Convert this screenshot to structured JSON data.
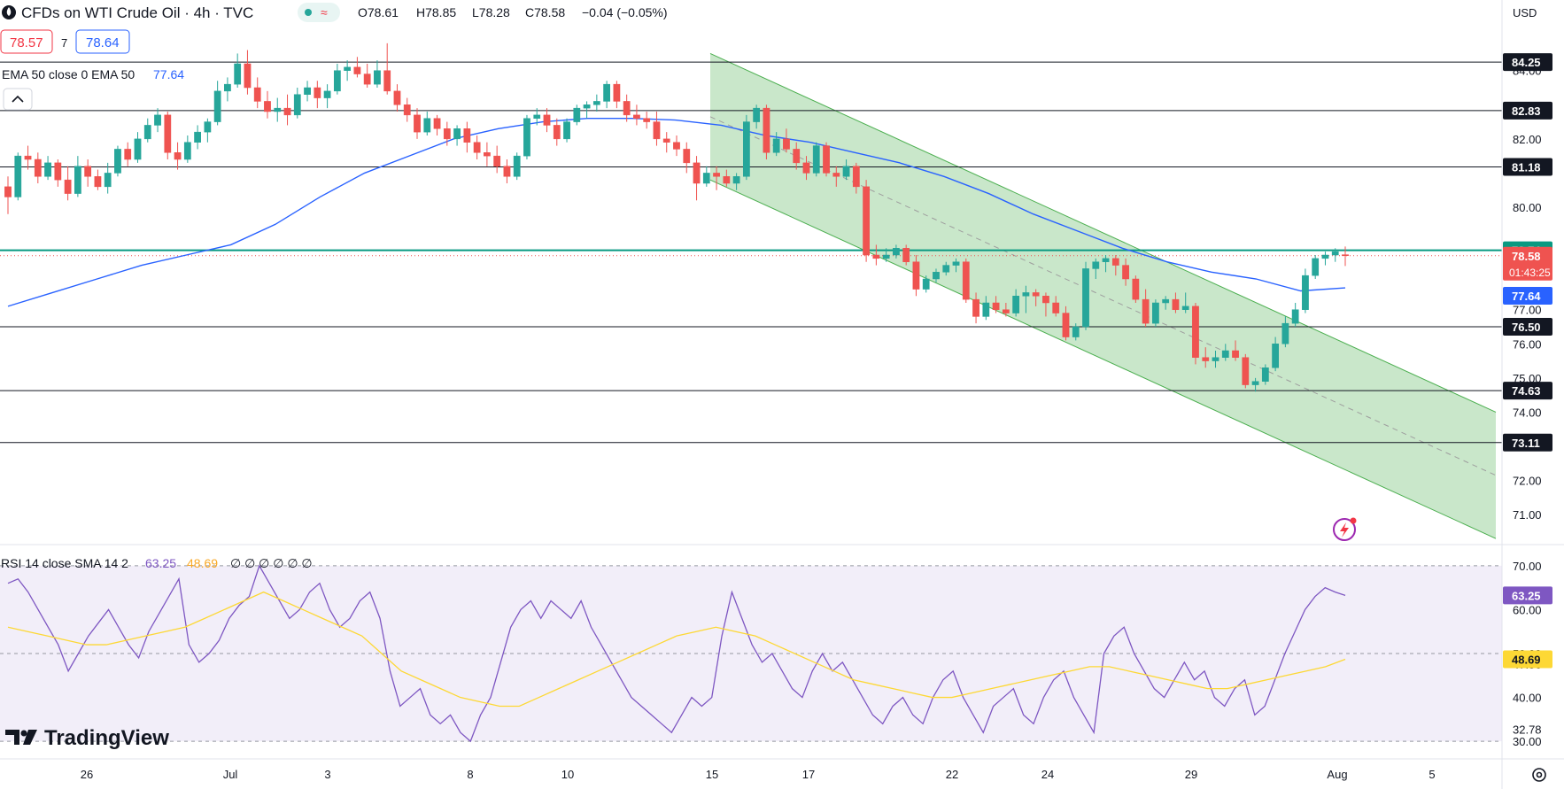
{
  "header": {
    "title": "CFDs on WTI Crude Oil · 4h · TVC",
    "o": "O78.61",
    "h": "H78.85",
    "l": "L78.28",
    "c": "C78.58",
    "change": "−0.04 (−0.05%)",
    "status_wave": "≈",
    "bid": "78.57",
    "spread": "7",
    "ask": "78.64",
    "currency": "USD"
  },
  "indicators": {
    "ema_label": "EMA 50 close 0 EMA 50",
    "ema_value": "77.64",
    "rsi_label": "RSI 14 close SMA 14 2",
    "rsi_value": "63.25",
    "rsi_sma_value": "48.69",
    "rsi_zeros": "∅ ∅ ∅ ∅ ∅ ∅"
  },
  "branding": {
    "logo_text": "TradingView"
  },
  "colors": {
    "up": "#26a69a",
    "down": "#ef5350",
    "ema": "#2962ff",
    "rsi": "#7e57c2",
    "rsi_sma": "#fdd835",
    "channel": "#4caf50",
    "price_line": "#089981"
  },
  "chart_data": [
    {
      "type": "candlestick",
      "title": "CFDs on WTI Crude Oil · 4h · TVC",
      "x_ticks": [
        "26",
        "Jul",
        "3",
        "8",
        "10",
        "15",
        "17",
        "22",
        "24",
        "29",
        "Aug",
        "5"
      ],
      "y_ticks": [
        71.0,
        72.0,
        74.0,
        75.0,
        76.0,
        77.0,
        78.0,
        80.0,
        82.0,
        84.0
      ],
      "ylim": [
        70.2,
        84.9
      ],
      "horizontal_levels": [
        84.25,
        82.83,
        81.18,
        76.5,
        74.63,
        73.11
      ],
      "highlight_level": 78.74,
      "last_price": 78.58,
      "countdown": "01:43:25",
      "ema_last": 77.64,
      "channel": {
        "upper": {
          "from": 84.5,
          "to": 74.0
        },
        "lower": {
          "from": 80.8,
          "to": 70.3
        }
      },
      "candles": [
        [
          80.6,
          80.9,
          79.8,
          80.3
        ],
        [
          80.3,
          81.6,
          80.2,
          81.5
        ],
        [
          81.5,
          81.8,
          81.1,
          81.4
        ],
        [
          81.4,
          81.6,
          80.7,
          80.9
        ],
        [
          80.9,
          81.5,
          80.8,
          81.3
        ],
        [
          81.3,
          81.4,
          80.6,
          80.8
        ],
        [
          80.8,
          81.2,
          80.2,
          80.4
        ],
        [
          80.4,
          81.5,
          80.3,
          81.2
        ],
        [
          81.2,
          81.4,
          80.6,
          80.9
        ],
        [
          80.9,
          81.1,
          80.5,
          80.6
        ],
        [
          80.6,
          81.3,
          80.4,
          81.0
        ],
        [
          81.0,
          81.8,
          80.9,
          81.7
        ],
        [
          81.7,
          81.9,
          81.2,
          81.4
        ],
        [
          81.4,
          82.2,
          81.3,
          82.0
        ],
        [
          82.0,
          82.6,
          81.9,
          82.4
        ],
        [
          82.4,
          82.9,
          82.2,
          82.7
        ],
        [
          82.7,
          82.8,
          81.4,
          81.6
        ],
        [
          81.6,
          81.9,
          81.1,
          81.4
        ],
        [
          81.4,
          82.1,
          81.3,
          81.9
        ],
        [
          81.9,
          82.4,
          81.7,
          82.2
        ],
        [
          82.2,
          82.6,
          81.9,
          82.5
        ],
        [
          82.5,
          83.7,
          82.4,
          83.4
        ],
        [
          83.4,
          83.8,
          83.1,
          83.6
        ],
        [
          83.6,
          84.5,
          83.5,
          84.2
        ],
        [
          84.2,
          84.6,
          83.3,
          83.5
        ],
        [
          83.5,
          83.8,
          82.9,
          83.1
        ],
        [
          83.1,
          83.4,
          82.6,
          82.8
        ],
        [
          82.8,
          83.2,
          82.5,
          82.9
        ],
        [
          82.9,
          83.3,
          82.4,
          82.7
        ],
        [
          82.7,
          83.5,
          82.6,
          83.3
        ],
        [
          83.3,
          83.7,
          83.1,
          83.5
        ],
        [
          83.5,
          83.7,
          82.9,
          83.2
        ],
        [
          83.2,
          83.6,
          82.9,
          83.4
        ],
        [
          83.4,
          84.2,
          83.3,
          84.0
        ],
        [
          84.0,
          84.3,
          83.7,
          84.1
        ],
        [
          84.1,
          84.4,
          83.8,
          83.9
        ],
        [
          83.9,
          84.2,
          83.5,
          83.6
        ],
        [
          83.6,
          84.3,
          83.5,
          84.0
        ],
        [
          84.0,
          84.8,
          83.3,
          83.4
        ],
        [
          83.4,
          83.6,
          82.8,
          83.0
        ],
        [
          83.0,
          83.2,
          82.5,
          82.7
        ],
        [
          82.7,
          82.9,
          82.0,
          82.2
        ],
        [
          82.2,
          82.8,
          82.1,
          82.6
        ],
        [
          82.6,
          82.7,
          82.1,
          82.3
        ],
        [
          82.3,
          82.5,
          81.8,
          82.0
        ],
        [
          82.0,
          82.4,
          81.8,
          82.3
        ],
        [
          82.3,
          82.5,
          81.6,
          81.9
        ],
        [
          81.9,
          82.1,
          81.4,
          81.6
        ],
        [
          81.6,
          81.9,
          81.2,
          81.5
        ],
        [
          81.5,
          81.8,
          81.0,
          81.2
        ],
        [
          81.2,
          81.4,
          80.7,
          80.9
        ],
        [
          80.9,
          81.6,
          80.8,
          81.5
        ],
        [
          81.5,
          82.7,
          81.4,
          82.6
        ],
        [
          82.6,
          82.9,
          82.4,
          82.7
        ],
        [
          82.7,
          82.9,
          82.2,
          82.4
        ],
        [
          82.4,
          82.6,
          81.8,
          82.0
        ],
        [
          82.0,
          82.6,
          81.9,
          82.5
        ],
        [
          82.5,
          83.0,
          82.4,
          82.9
        ],
        [
          82.9,
          83.1,
          82.6,
          83.0
        ],
        [
          83.0,
          83.3,
          82.8,
          83.1
        ],
        [
          83.1,
          83.7,
          82.9,
          83.6
        ],
        [
          83.6,
          83.7,
          82.9,
          83.1
        ],
        [
          83.1,
          83.3,
          82.5,
          82.7
        ],
        [
          82.7,
          83.0,
          82.4,
          82.6
        ],
        [
          82.6,
          82.8,
          82.3,
          82.5
        ],
        [
          82.5,
          82.8,
          81.8,
          82.0
        ],
        [
          82.0,
          82.2,
          81.6,
          81.9
        ],
        [
          81.9,
          82.1,
          81.5,
          81.7
        ],
        [
          81.7,
          81.9,
          81.0,
          81.3
        ],
        [
          81.3,
          81.5,
          80.2,
          80.7
        ],
        [
          80.7,
          81.2,
          80.6,
          81.0
        ],
        [
          81.0,
          81.2,
          80.5,
          80.9
        ],
        [
          80.9,
          81.1,
          80.6,
          80.7
        ],
        [
          80.7,
          81.0,
          80.5,
          80.9
        ],
        [
          80.9,
          82.7,
          80.8,
          82.5
        ],
        [
          82.5,
          83.0,
          82.3,
          82.9
        ],
        [
          82.9,
          83.0,
          81.4,
          81.6
        ],
        [
          81.6,
          82.2,
          81.5,
          82.0
        ],
        [
          82.0,
          82.3,
          81.6,
          81.7
        ],
        [
          81.7,
          81.9,
          81.1,
          81.3
        ],
        [
          81.3,
          81.5,
          80.8,
          81.0
        ],
        [
          81.0,
          81.9,
          80.9,
          81.8
        ],
        [
          81.8,
          81.9,
          80.9,
          81.0
        ],
        [
          81.0,
          81.2,
          80.6,
          80.9
        ],
        [
          80.9,
          81.4,
          80.8,
          81.2
        ],
        [
          81.2,
          81.3,
          80.4,
          80.6
        ],
        [
          80.6,
          80.8,
          78.4,
          78.6
        ],
        [
          78.6,
          78.9,
          78.3,
          78.5
        ],
        [
          78.5,
          78.8,
          78.4,
          78.6
        ],
        [
          78.6,
          78.9,
          78.5,
          78.8
        ],
        [
          78.8,
          78.9,
          78.3,
          78.4
        ],
        [
          78.4,
          78.6,
          77.4,
          77.6
        ],
        [
          77.6,
          78.0,
          77.5,
          77.9
        ],
        [
          77.9,
          78.2,
          77.8,
          78.1
        ],
        [
          78.1,
          78.4,
          78.0,
          78.3
        ],
        [
          78.3,
          78.5,
          78.1,
          78.4
        ],
        [
          78.4,
          78.5,
          77.2,
          77.3
        ],
        [
          77.3,
          77.5,
          76.6,
          76.8
        ],
        [
          76.8,
          77.4,
          76.7,
          77.2
        ],
        [
          77.2,
          77.4,
          76.9,
          77.0
        ],
        [
          77.0,
          77.2,
          76.8,
          76.9
        ],
        [
          76.9,
          77.6,
          76.8,
          77.4
        ],
        [
          77.4,
          77.7,
          76.9,
          77.5
        ],
        [
          77.5,
          77.6,
          77.1,
          77.4
        ],
        [
          77.4,
          77.5,
          76.8,
          77.2
        ],
        [
          77.2,
          77.4,
          76.8,
          76.9
        ],
        [
          76.9,
          77.1,
          76.1,
          76.2
        ],
        [
          76.2,
          76.6,
          76.1,
          76.5
        ],
        [
          76.5,
          78.4,
          76.4,
          78.2
        ],
        [
          78.2,
          78.5,
          77.9,
          78.4
        ],
        [
          78.4,
          78.6,
          78.1,
          78.5
        ],
        [
          78.5,
          78.6,
          78.0,
          78.3
        ],
        [
          78.3,
          78.5,
          77.7,
          77.9
        ],
        [
          77.9,
          78.0,
          77.2,
          77.3
        ],
        [
          77.3,
          77.6,
          76.5,
          76.6
        ],
        [
          76.6,
          77.3,
          76.5,
          77.2
        ],
        [
          77.2,
          77.4,
          77.0,
          77.3
        ],
        [
          77.3,
          77.5,
          76.9,
          77.0
        ],
        [
          77.0,
          77.5,
          76.9,
          77.1
        ],
        [
          77.1,
          77.2,
          75.4,
          75.6
        ],
        [
          75.6,
          75.9,
          75.3,
          75.5
        ],
        [
          75.5,
          75.8,
          75.3,
          75.6
        ],
        [
          75.6,
          76.0,
          75.5,
          75.8
        ],
        [
          75.8,
          76.1,
          75.5,
          75.6
        ],
        [
          75.6,
          75.7,
          74.7,
          74.8
        ],
        [
          74.8,
          75.0,
          74.6,
          74.9
        ],
        [
          74.9,
          75.4,
          74.8,
          75.3
        ],
        [
          75.3,
          76.2,
          75.2,
          76.0
        ],
        [
          76.0,
          76.8,
          75.9,
          76.6
        ],
        [
          76.6,
          77.2,
          76.5,
          77.0
        ],
        [
          77.0,
          78.2,
          76.9,
          78.0
        ],
        [
          78.0,
          78.6,
          77.9,
          78.5
        ],
        [
          78.5,
          78.7,
          78.3,
          78.6
        ],
        [
          78.6,
          78.8,
          78.4,
          78.7
        ],
        [
          78.61,
          78.85,
          78.28,
          78.58
        ]
      ],
      "ema": [
        77.1,
        77.5,
        77.9,
        78.3,
        78.6,
        78.9,
        79.5,
        80.3,
        81.0,
        81.5,
        82.0,
        82.3,
        82.5,
        82.6,
        82.6,
        82.55,
        82.4,
        82.1,
        81.9,
        81.6,
        81.3,
        80.9,
        80.4,
        79.8,
        79.3,
        78.8,
        78.4,
        78.1,
        77.9,
        77.55,
        77.64
      ],
      "ohlc_label": "O78.61 H78.85 L78.28 C78.58"
    },
    {
      "type": "line",
      "title": "RSI 14 close SMA 14 2",
      "y_ticks": [
        30.0,
        40.0,
        50.0,
        60.0,
        70.0
      ],
      "ylim": [
        27.0,
        73.0
      ],
      "band": [
        30,
        70
      ],
      "midline": 50,
      "series": [
        {
          "name": "RSI",
          "values": [
            66,
            67,
            64,
            60,
            56,
            52,
            46,
            50,
            54,
            57,
            60,
            56,
            52,
            49,
            55,
            59,
            63,
            67,
            52,
            48,
            50,
            53,
            58,
            61,
            63,
            70,
            66,
            62,
            58,
            60,
            64,
            66,
            60,
            56,
            58,
            62,
            64,
            58,
            46,
            38,
            40,
            42,
            36,
            34,
            36,
            32,
            30,
            36,
            40,
            48,
            56,
            60,
            62,
            58,
            62,
            60,
            58,
            62,
            56,
            52,
            48,
            44,
            40,
            38,
            36,
            34,
            32,
            36,
            40,
            38,
            40,
            54,
            64,
            58,
            52,
            48,
            50,
            46,
            42,
            40,
            46,
            50,
            46,
            48,
            44,
            40,
            36,
            34,
            38,
            40,
            36,
            34,
            40,
            44,
            46,
            40,
            36,
            32,
            38,
            40,
            42,
            36,
            34,
            40,
            44,
            46,
            40,
            36,
            32,
            50,
            54,
            56,
            50,
            46,
            42,
            40,
            44,
            48,
            44,
            46,
            40,
            38,
            42,
            44,
            36,
            38,
            44,
            50,
            55,
            60,
            63,
            65,
            64,
            63.25
          ]
        },
        {
          "name": "SMA",
          "values": [
            56,
            55,
            54,
            53,
            52,
            52,
            53,
            54,
            55,
            56,
            58,
            60,
            62,
            64,
            62,
            60,
            58,
            56,
            54,
            50,
            46,
            44,
            42,
            40,
            39,
            38,
            38,
            40,
            42,
            44,
            46,
            48,
            50,
            52,
            54,
            55,
            56,
            55,
            54,
            52,
            50,
            48,
            46,
            44,
            43,
            42,
            41,
            40,
            40,
            41,
            42,
            43,
            44,
            45,
            46,
            47,
            47,
            46,
            45,
            44,
            43,
            42,
            42,
            43,
            44,
            45,
            46,
            47,
            48.69
          ]
        }
      ],
      "last_rsi": 63.25,
      "last_sma": 48.69,
      "marked_level": 47.56,
      "lower_level": 32.78
    }
  ]
}
